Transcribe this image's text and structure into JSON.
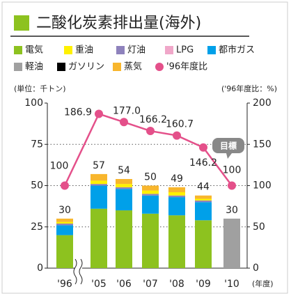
{
  "chart_data": {
    "type": "bar",
    "title": "二酸化炭素排出量(海外)",
    "y_label": "(単位：千トン)",
    "y2_label": "('96年度比：%)",
    "x_unit": "(年度)",
    "categories": [
      "'96",
      "'05",
      "'06",
      "'07",
      "'08",
      "'09",
      "'10"
    ],
    "series": [
      {
        "name": "電気",
        "color": "#8dc21f",
        "values": [
          20,
          36,
          35,
          33,
          32,
          29,
          null
        ]
      },
      {
        "name": "重油",
        "color": "#fff100",
        "values": [
          1,
          2,
          2,
          2,
          2,
          1,
          null
        ]
      },
      {
        "name": "灯油",
        "color": "#8e82bc",
        "values": [
          1,
          1,
          1,
          1,
          1,
          1,
          null
        ]
      },
      {
        "name": "LPG",
        "color": "#f0a7c9",
        "values": [
          null,
          null,
          null,
          null,
          null,
          null,
          null
        ]
      },
      {
        "name": "都市ガス",
        "color": "#00a0e9",
        "values": [
          6,
          14,
          13,
          11,
          11,
          11,
          null
        ]
      },
      {
        "name": "軽油",
        "color": "#a0a0a0",
        "values": [
          null,
          null,
          null,
          null,
          null,
          null,
          30
        ]
      },
      {
        "name": "ガソリン",
        "color": "#000000",
        "values": [
          null,
          null,
          null,
          null,
          null,
          null,
          null
        ]
      },
      {
        "name": "蒸気",
        "color": "#f8b62d",
        "values": [
          2,
          4,
          3,
          3,
          3,
          2,
          null
        ]
      }
    ],
    "totals": [
      30,
      57,
      54,
      50,
      49,
      44,
      30
    ],
    "line": {
      "name": "'96年度比",
      "color": "#e4508a",
      "axis": "y2",
      "values": [
        100,
        186.9,
        177.0,
        166.2,
        160.7,
        146.2,
        100
      ],
      "value_labels": [
        "100",
        "186.9",
        "177.0",
        "166.2",
        "160.7",
        "146.2",
        "100"
      ]
    },
    "annotation": "目標",
    "ylim": [
      0,
      100
    ],
    "yticks": [
      0,
      25,
      50,
      75,
      100
    ],
    "y2lim": [
      0,
      200
    ],
    "y2ticks": [
      0,
      50,
      100,
      150,
      200
    ],
    "grid": true
  }
}
